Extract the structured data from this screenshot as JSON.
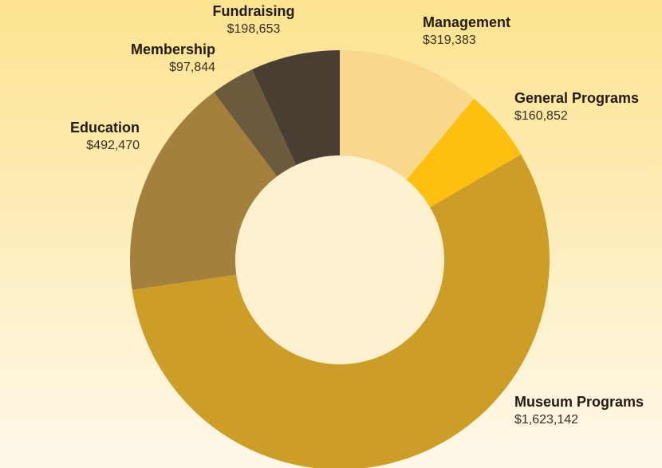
{
  "chart_data": {
    "type": "pie",
    "categories": [
      "Management",
      "General Programs",
      "Museum Programs",
      "Education",
      "Membership",
      "Fundraising"
    ],
    "values": [
      319383,
      160852,
      1623142,
      492470,
      97844,
      198653
    ],
    "value_labels": [
      "$319,383",
      "$160,852",
      "$1,623,142",
      "$492,470",
      "$97,844",
      "$198,653"
    ],
    "colors": [
      "#f7d88e",
      "#fdbf10",
      "#cc9e27",
      "#a3803c",
      "#6b5a3e",
      "#4a3e33"
    ]
  }
}
